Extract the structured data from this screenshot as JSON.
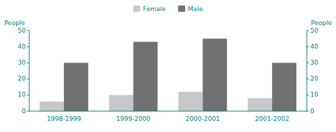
{
  "chart_data": {
    "type": "bar",
    "categories": [
      "1998-1999",
      "1999-2000",
      "2000-2001",
      "2001-2002"
    ],
    "series": [
      {
        "name": "Female",
        "color": "#c8c8c8",
        "values": [
          6,
          10,
          12,
          8
        ]
      },
      {
        "name": "Male",
        "color": "#707070",
        "values": [
          30,
          43,
          45,
          30
        ]
      }
    ],
    "ylabel": "People",
    "y2label": "People",
    "ylim": [
      0,
      50
    ],
    "yticks": [
      0,
      10,
      20,
      30,
      40,
      50
    ],
    "y2lim": [
      0,
      50
    ],
    "y2ticks": [
      0,
      10,
      20,
      30,
      40,
      50
    ],
    "grid": false,
    "legend": "top"
  }
}
